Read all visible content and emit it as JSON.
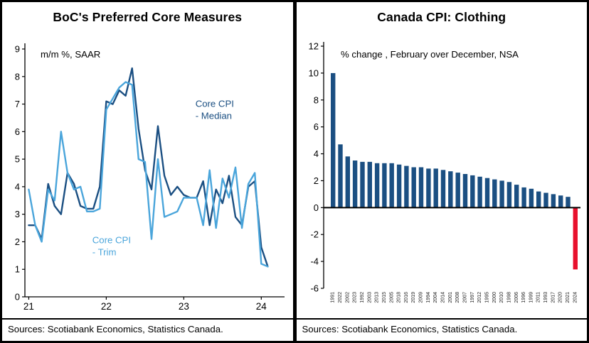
{
  "colors": {
    "dark_blue": "#1b4f82",
    "light_blue": "#4aa5db",
    "red": "#e8112d",
    "axis": "#000000"
  },
  "chart_data": [
    {
      "type": "line",
      "title": "BoC's Preferred Core Measures",
      "subtitle": "m/m %, SAAR",
      "source": "Sources: Scotiabank Economics, Statistics Canada.",
      "ylim": [
        0,
        9
      ],
      "y_ticks": [
        0,
        1,
        2,
        3,
        4,
        5,
        6,
        7,
        8,
        9
      ],
      "xlim": [
        20.95,
        24.3
      ],
      "x_ticks": [
        21,
        22,
        23,
        24
      ],
      "x_tick_labels": [
        "21",
        "22",
        "23",
        "24"
      ],
      "x_start": 21.0,
      "x_step": 0.08333,
      "x_unit": "monthly, Jan 2021 - Feb 2024",
      "grid": false,
      "series": [
        {
          "name": "Core CPI - Median",
          "color": "#1b4f82",
          "values": [
            2.6,
            2.6,
            2.1,
            4.1,
            3.3,
            3.0,
            4.5,
            4.1,
            3.3,
            3.2,
            3.2,
            4.0,
            7.1,
            7.0,
            7.5,
            7.3,
            8.3,
            6.1,
            4.6,
            3.9,
            6.2,
            4.4,
            3.7,
            4.0,
            3.7,
            3.6,
            3.6,
            4.2,
            2.6,
            3.9,
            3.4,
            4.4,
            2.9,
            2.6,
            4.0,
            4.2,
            1.8,
            1.1
          ]
        },
        {
          "name": "Core CPI - Trim",
          "color": "#4aa5db",
          "values": [
            3.9,
            2.6,
            2.0,
            3.9,
            3.5,
            6.0,
            4.5,
            3.9,
            4.0,
            3.1,
            3.1,
            3.2,
            6.8,
            7.2,
            7.6,
            7.8,
            7.7,
            5.0,
            4.9,
            2.1,
            5.0,
            2.9,
            3.0,
            3.1,
            3.6,
            3.6,
            3.6,
            2.6,
            4.6,
            2.5,
            4.3,
            3.6,
            4.7,
            2.5,
            4.1,
            4.5,
            1.2,
            1.1
          ]
        }
      ],
      "annotations": [
        {
          "lines": [
            "Core CPI",
            "- Median"
          ],
          "color": "#1b4f82",
          "x": 23.15,
          "y": 6.9
        },
        {
          "lines": [
            "Core CPI",
            "- Trim"
          ],
          "color": "#4aa5db",
          "x": 21.82,
          "y": 1.95
        }
      ]
    },
    {
      "type": "bar",
      "title": "Canada CPI: Clothing",
      "subtitle": "% change , February over December, NSA",
      "source": "Sources: Scotiabank Economics, Statistics Canada.",
      "ylim": [
        -6,
        12
      ],
      "y_ticks": [
        -6,
        -4,
        -2,
        0,
        2,
        4,
        6,
        8,
        10,
        12
      ],
      "grid": false,
      "bar_color": "#1b4f82",
      "highlight_color": "#e8112d",
      "highlight_index": 33,
      "categories": [
        "1991",
        "2022",
        "2002",
        "2023",
        "1992",
        "2003",
        "2013",
        "2015",
        "2005",
        "2018",
        "2016",
        "2019",
        "2009",
        "1994",
        "2004",
        "2014",
        "2001",
        "2008",
        "2007",
        "1997",
        "2012",
        "1995",
        "2000",
        "2010",
        "1998",
        "2006",
        "1996",
        "1999",
        "2011",
        "1993",
        "2017",
        "2020",
        "2021",
        "2024"
      ],
      "values": [
        10.0,
        4.7,
        3.8,
        3.5,
        3.4,
        3.4,
        3.3,
        3.3,
        3.3,
        3.2,
        3.1,
        3.0,
        3.0,
        2.9,
        2.9,
        2.8,
        2.7,
        2.6,
        2.5,
        2.4,
        2.3,
        2.2,
        2.1,
        2.0,
        1.9,
        1.7,
        1.5,
        1.4,
        1.2,
        1.1,
        1.0,
        0.9,
        0.8,
        -4.6
      ]
    }
  ]
}
